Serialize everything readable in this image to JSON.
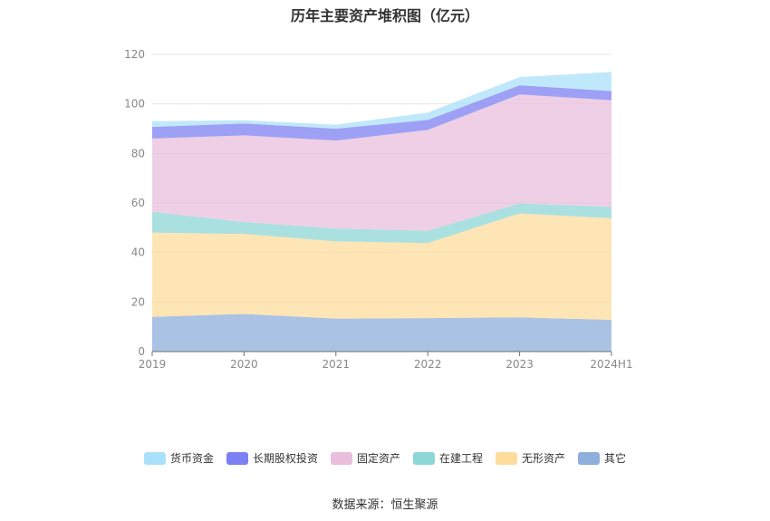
{
  "chart_data": {
    "type": "area",
    "stacked": true,
    "title": "历年主要资产堆积图（亿元）",
    "categories": [
      "2019",
      "2020",
      "2021",
      "2022",
      "2023",
      "2024H1"
    ],
    "ylim": [
      0,
      120
    ],
    "yticks": [
      0,
      20,
      40,
      60,
      80,
      100,
      120
    ],
    "grid": true,
    "legend_position": "bottom",
    "series": [
      {
        "name": "其它",
        "color": "#8eaedb",
        "values": [
          14,
          15.2,
          13.3,
          13.5,
          13.8,
          12.8
        ]
      },
      {
        "name": "无形资产",
        "color": "#fddc9c",
        "values": [
          34,
          32.3,
          31.2,
          30.3,
          42,
          41
        ]
      },
      {
        "name": "在建工程",
        "color": "#8dd7d6",
        "values": [
          8.5,
          4.8,
          5.2,
          5,
          4,
          4.7
        ]
      },
      {
        "name": "固定资产",
        "color": "#e9bfdd",
        "values": [
          29.5,
          35,
          35.5,
          40.7,
          44,
          43
        ]
      },
      {
        "name": "长期股权投资",
        "color": "#7c80f2",
        "values": [
          4.7,
          4.8,
          4.8,
          4,
          3.7,
          3.7
        ]
      },
      {
        "name": "货币资金",
        "color": "#abe0fa",
        "values": [
          2.3,
          1.3,
          1.6,
          3,
          3.3,
          7.7
        ]
      }
    ]
  },
  "legend_order": [
    "货币资金",
    "长期股权投资",
    "固定资产",
    "在建工程",
    "无形资产",
    "其它"
  ],
  "source": "数据来源：恒生聚源"
}
